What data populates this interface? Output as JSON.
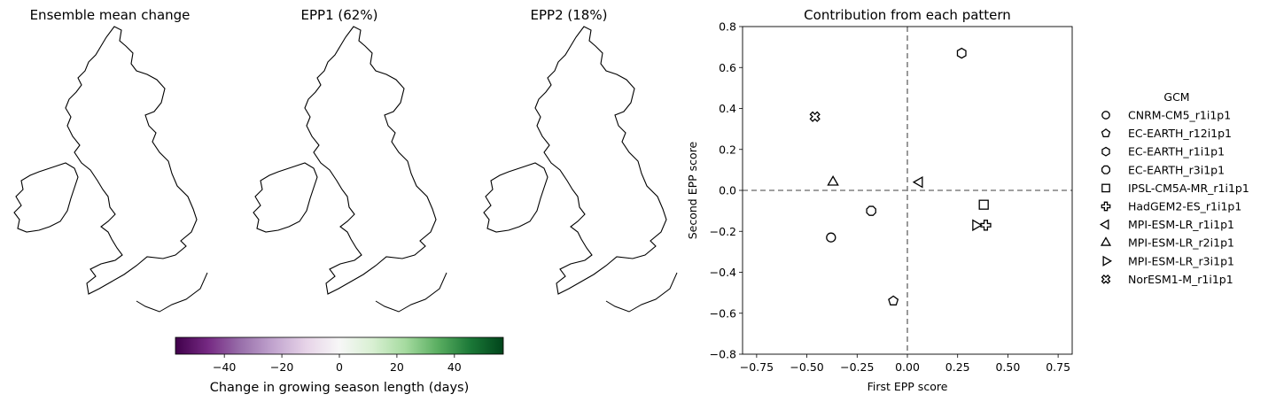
{
  "maps": {
    "panels": [
      {
        "title": "Ensemble mean change"
      },
      {
        "title": "EPP1 (62%)"
      },
      {
        "title": "EPP2 (18%)"
      }
    ],
    "colorbar": {
      "label": "Change in growing season length (days)",
      "range": [
        -57,
        57
      ],
      "ticks": [
        "−40",
        "−20",
        "0",
        "20",
        "40"
      ],
      "colormap": "PRGn",
      "stops": [
        "#40004b",
        "#762a83",
        "#9970ab",
        "#c2a5cf",
        "#e7d4e8",
        "#f7f7f7",
        "#d9f0d3",
        "#a6dba0",
        "#5aae61",
        "#1b7837",
        "#00441b"
      ]
    }
  },
  "chart_data": {
    "type": "scatter",
    "title": "Contribution from each pattern",
    "xlabel": "First EPP score",
    "ylabel": "Second EPP score",
    "xlim": [
      -0.82,
      0.82
    ],
    "ylim": [
      -0.8,
      0.8
    ],
    "xticks": [
      "−0.75",
      "−0.50",
      "−0.25",
      "0.00",
      "0.25",
      "0.50",
      "0.75"
    ],
    "yticks": [
      "−0.8",
      "−0.6",
      "−0.4",
      "−0.2",
      "0.0",
      "0.2",
      "0.4",
      "0.6",
      "0.8"
    ],
    "reference_lines": {
      "x": 0,
      "y": 0,
      "style": "dashed",
      "color": "#808080"
    },
    "legend": {
      "title": "GCM",
      "placement": "right"
    },
    "series": [
      {
        "name": "CNRM-CM5_r1i1p1",
        "marker": "circle",
        "x": -0.38,
        "y": -0.23
      },
      {
        "name": "EC-EARTH_r12i1p1",
        "marker": "pentagon",
        "x": -0.07,
        "y": -0.54
      },
      {
        "name": "EC-EARTH_r1i1p1",
        "marker": "hexagon",
        "x": 0.27,
        "y": 0.67
      },
      {
        "name": "EC-EARTH_r3i1p1",
        "marker": "octagon",
        "x": -0.18,
        "y": -0.1
      },
      {
        "name": "IPSL-CM5A-MR_r1i1p1",
        "marker": "square",
        "x": 0.38,
        "y": -0.07
      },
      {
        "name": "HadGEM2-ES_r1i1p1",
        "marker": "plus",
        "x": 0.39,
        "y": -0.17
      },
      {
        "name": "MPI-ESM-LR_r1i1p1",
        "marker": "triangle-left",
        "x": 0.06,
        "y": 0.04
      },
      {
        "name": "MPI-ESM-LR_r2i1p1",
        "marker": "triangle-up",
        "x": -0.37,
        "y": 0.04
      },
      {
        "name": "MPI-ESM-LR_r3i1p1",
        "marker": "triangle-right",
        "x": 0.34,
        "y": -0.17
      },
      {
        "name": "NorESM1-M_r1i1p1",
        "marker": "x-filled",
        "x": -0.46,
        "y": 0.36
      }
    ]
  }
}
